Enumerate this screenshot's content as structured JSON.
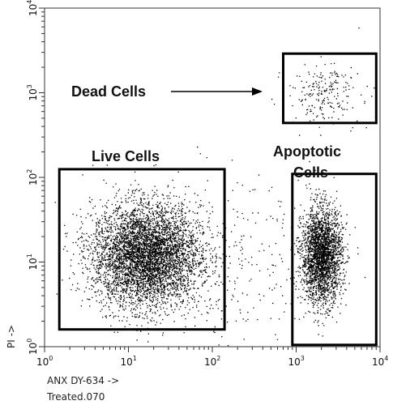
{
  "chart_data": {
    "type": "scatter",
    "x_axis": {
      "scale": "log",
      "range": [
        1,
        10000
      ],
      "tick_labels": [
        {
          "value": 1,
          "base": "10",
          "exp": "0"
        },
        {
          "value": 10,
          "base": "10",
          "exp": "1"
        },
        {
          "value": 100,
          "base": "10",
          "exp": "2"
        },
        {
          "value": 1000,
          "base": "10",
          "exp": "3"
        },
        {
          "value": 10000,
          "base": "10",
          "exp": "4"
        }
      ],
      "label": "ANX DY-634 ->"
    },
    "y_axis": {
      "scale": "log",
      "range": [
        1,
        10000
      ],
      "tick_labels": [
        {
          "value": 1,
          "base": "10",
          "exp": "0"
        },
        {
          "value": 10,
          "base": "10",
          "exp": "1"
        },
        {
          "value": 100,
          "base": "10",
          "exp": "2"
        },
        {
          "value": 1000,
          "base": "10",
          "exp": "3"
        },
        {
          "value": 10000,
          "base": "10",
          "exp": "4"
        }
      ],
      "label": "PI ->",
      "label_color": "#2a7fd4"
    },
    "sample_label": "Treated.070",
    "grid": false,
    "point_color": "#000000",
    "gates": [
      {
        "name": "live",
        "label": "Live Cells",
        "x_range": [
          1.5,
          140
        ],
        "y_range": [
          1.6,
          125
        ]
      },
      {
        "name": "apoptotic",
        "label": "Apoptotic Cells",
        "x_range": [
          900,
          9000
        ],
        "y_range": [
          1.05,
          110
        ]
      },
      {
        "name": "dead",
        "label": "Dead Cells",
        "x_range": [
          700,
          9000
        ],
        "y_range": [
          440,
          2900
        ]
      }
    ],
    "populations": [
      {
        "name": "live",
        "center": [
          16,
          12
        ],
        "spread_decades": [
          0.32,
          0.3
        ],
        "count": 5000
      },
      {
        "name": "apoptotic",
        "center": [
          2000,
          12
        ],
        "spread_decades": [
          0.12,
          0.28
        ],
        "count": 2600
      },
      {
        "name": "dead",
        "center": [
          2100,
          1000
        ],
        "spread_decades": [
          0.22,
          0.18
        ],
        "count": 220
      },
      {
        "name": "debris",
        "center": [
          100,
          10
        ],
        "spread_decades": [
          0.6,
          0.5
        ],
        "count": 350
      }
    ]
  },
  "annotations": {
    "dead_cells": "Dead Cells",
    "live_cells": "Live Cells",
    "apoptotic_line1": "Apoptotic",
    "apoptotic_line2": "Cells"
  }
}
